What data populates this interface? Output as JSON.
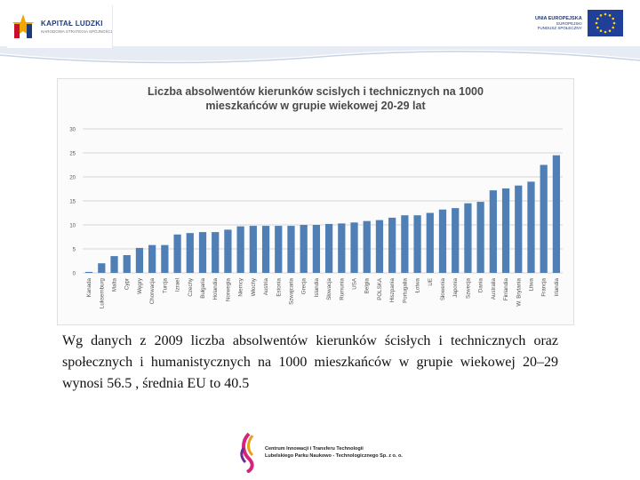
{
  "header": {
    "left_logo_title": "KAPITAŁ LUDZKI",
    "left_logo_subtitle": "NARODOWA STRATEGIA SPÓJNOŚCI",
    "right_logo_line1": "UNIA EUROPEJSKA",
    "right_logo_line2": "EUROPEJSKI",
    "right_logo_line3": "FUNDUSZ SPOŁECZNY"
  },
  "colors": {
    "bar": "#4f7fb5",
    "bar_top": "#6e9bd0",
    "grid": "#d6d6d6",
    "axis_text": "#555555",
    "eu_blue": "#1f3f99",
    "eu_star": "#ffd500",
    "wave": "#c8d3e6"
  },
  "chart_data": {
    "type": "bar",
    "title_line1": "Liczba absolwentów kierunków scislych i technicznych na 1000",
    "title_line2": "mieszkańców w grupie wiekowej 20-29 lat",
    "xlabel": "",
    "ylabel": "",
    "ylim": [
      0,
      30
    ],
    "yticks": [
      0,
      5,
      10,
      15,
      20,
      25,
      30
    ],
    "grid": true,
    "categories": [
      "Kanada",
      "Luksemburg",
      "Malta",
      "Cypr",
      "Węgry",
      "Chorwacja",
      "Turcja",
      "Izrael",
      "Czechy",
      "Bułgaria",
      "Holandia",
      "Norwegia",
      "Niemcy",
      "Włochy",
      "Austria",
      "Estonia",
      "Szwajcaria",
      "Grecja",
      "Islandia",
      "Słowacja",
      "Rumunia",
      "USA",
      "Belgia",
      "POLSKA",
      "Hiszpania",
      "Portugalia",
      "Łotwa",
      "UE",
      "Słowenia",
      "Japonia",
      "Szwecja",
      "Dania",
      "Australia",
      "Finlandia",
      "W. Brytania",
      "Litwa",
      "Francja",
      "Irlandia"
    ],
    "values": [
      0.2,
      2.0,
      3.5,
      3.7,
      5.2,
      5.8,
      5.8,
      8.0,
      8.3,
      8.5,
      8.5,
      9.0,
      9.7,
      9.8,
      9.8,
      9.8,
      9.8,
      10.0,
      10.0,
      10.2,
      10.3,
      10.5,
      10.8,
      11.0,
      11.5,
      12.0,
      12.0,
      12.5,
      13.2,
      13.5,
      14.5,
      14.8,
      17.2,
      17.6,
      18.2,
      19.0,
      22.5,
      24.5
    ]
  },
  "caption": "Wg danych z 2009 liczba absolwentów kierunków ścisłych i technicznych oraz społecznych i humanistycznych na 1000 mieszkańców w grupie wiekowej 20–29 wynosi 56.5 , średnia EU to 40.5",
  "footer": {
    "line1": "Centrum Innowacji i Transferu Technologii",
    "line2": "Lubelskiego Parku Naukowo - Technologicznego Sp. z o. o."
  }
}
